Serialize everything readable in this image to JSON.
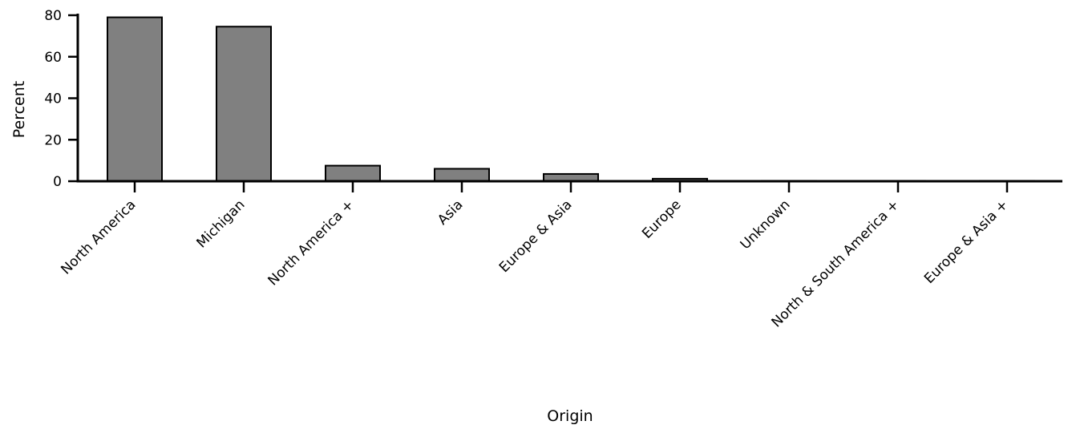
{
  "chart_data": {
    "type": "bar",
    "title": "",
    "xlabel": "Origin",
    "ylabel": "Percent",
    "categories": [
      "North America",
      "Michigan",
      "North America +",
      "Asia",
      "Europe & Asia",
      "Europe",
      "Unknown",
      "North & South America +",
      "Europe & Asia +"
    ],
    "values": [
      79,
      74.5,
      7.5,
      6,
      3.5,
      1.2,
      0.2,
      0.2,
      0.2
    ],
    "ylim": [
      0,
      80
    ],
    "yticks": [
      0,
      20,
      40,
      60,
      80
    ],
    "grid": false,
    "legend": "none",
    "colors": {
      "bar_fill": "#808080",
      "bar_stroke": "#000000",
      "axis": "#000000"
    }
  }
}
